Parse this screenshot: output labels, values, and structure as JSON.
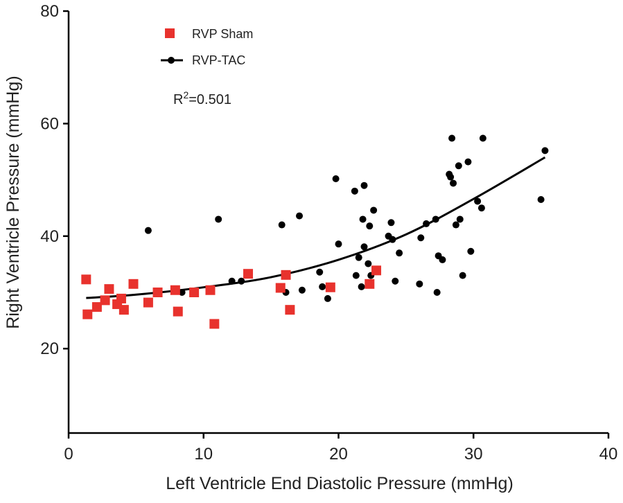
{
  "chart_data": {
    "type": "scatter",
    "title": "",
    "xlabel": "Left Ventricle End Diastolic Pressure (mmHg)",
    "ylabel": "Right Ventricle Pressure (mmHg)",
    "xlim": [
      0,
      40
    ],
    "ylim": [
      5,
      80
    ],
    "x_ticks": [
      0,
      10,
      20,
      30,
      40
    ],
    "y_ticks": [
      20,
      40,
      60,
      80
    ],
    "grid": false,
    "legend_position": "top-left",
    "annotation": {
      "base": "R",
      "superscript": "2",
      "rest": "=0.501"
    },
    "series": [
      {
        "name": "RVP Sham",
        "marker": "square",
        "color": "#e8322d",
        "points": [
          [
            1.3,
            32.3
          ],
          [
            1.4,
            26.1
          ],
          [
            2.1,
            27.4
          ],
          [
            2.7,
            28.6
          ],
          [
            3.0,
            30.6
          ],
          [
            3.6,
            27.9
          ],
          [
            3.9,
            28.9
          ],
          [
            4.1,
            26.9
          ],
          [
            4.8,
            31.5
          ],
          [
            5.9,
            28.2
          ],
          [
            6.6,
            30.0
          ],
          [
            7.9,
            30.4
          ],
          [
            8.1,
            26.6
          ],
          [
            9.3,
            30.0
          ],
          [
            10.5,
            30.4
          ],
          [
            10.8,
            24.4
          ],
          [
            13.3,
            33.3
          ],
          [
            15.7,
            30.8
          ],
          [
            16.1,
            33.1
          ],
          [
            16.4,
            26.9
          ],
          [
            19.4,
            30.9
          ],
          [
            22.3,
            31.5
          ],
          [
            22.8,
            33.9
          ]
        ]
      },
      {
        "name": "RVP-TAC",
        "marker": "circle",
        "color": "#000000",
        "fit_line": true,
        "fit_points": [
          [
            1.3,
            29.0
          ],
          [
            5,
            29.6
          ],
          [
            10,
            30.9
          ],
          [
            15,
            32.7
          ],
          [
            20,
            35.8
          ],
          [
            25,
            40.3
          ],
          [
            30,
            46.6
          ],
          [
            35.3,
            54.0
          ]
        ],
        "points": [
          [
            5.9,
            41.0
          ],
          [
            8.4,
            30.0
          ],
          [
            11.1,
            43.0
          ],
          [
            12.1,
            32.0
          ],
          [
            12.8,
            32.0
          ],
          [
            15.8,
            42.0
          ],
          [
            16.1,
            30.0
          ],
          [
            17.1,
            43.6
          ],
          [
            17.3,
            30.4
          ],
          [
            18.6,
            33.6
          ],
          [
            18.8,
            31.0
          ],
          [
            19.2,
            28.9
          ],
          [
            19.8,
            50.2
          ],
          [
            20.0,
            38.6
          ],
          [
            21.2,
            48.0
          ],
          [
            21.3,
            33.0
          ],
          [
            21.5,
            36.2
          ],
          [
            21.7,
            31.0
          ],
          [
            21.8,
            43.0
          ],
          [
            21.9,
            49.0
          ],
          [
            21.9,
            38.1
          ],
          [
            22.2,
            35.1
          ],
          [
            22.3,
            41.8
          ],
          [
            22.4,
            33.0
          ],
          [
            22.6,
            44.6
          ],
          [
            23.9,
            42.4
          ],
          [
            23.7,
            40.0
          ],
          [
            24.0,
            39.4
          ],
          [
            24.2,
            32.0
          ],
          [
            24.5,
            37.0
          ],
          [
            26.0,
            31.5
          ],
          [
            26.1,
            39.7
          ],
          [
            26.5,
            42.2
          ],
          [
            27.2,
            43.0
          ],
          [
            27.3,
            30.0
          ],
          [
            27.4,
            36.5
          ],
          [
            27.7,
            35.8
          ],
          [
            28.2,
            51.0
          ],
          [
            28.3,
            50.5
          ],
          [
            28.4,
            57.4
          ],
          [
            28.5,
            49.4
          ],
          [
            28.7,
            42.0
          ],
          [
            28.9,
            52.5
          ],
          [
            29.0,
            43.0
          ],
          [
            29.2,
            33.0
          ],
          [
            29.6,
            53.2
          ],
          [
            29.8,
            37.3
          ],
          [
            30.3,
            46.2
          ],
          [
            30.6,
            45.0
          ],
          [
            30.7,
            57.4
          ],
          [
            35.0,
            46.5
          ],
          [
            35.3,
            55.2
          ]
        ]
      }
    ]
  }
}
